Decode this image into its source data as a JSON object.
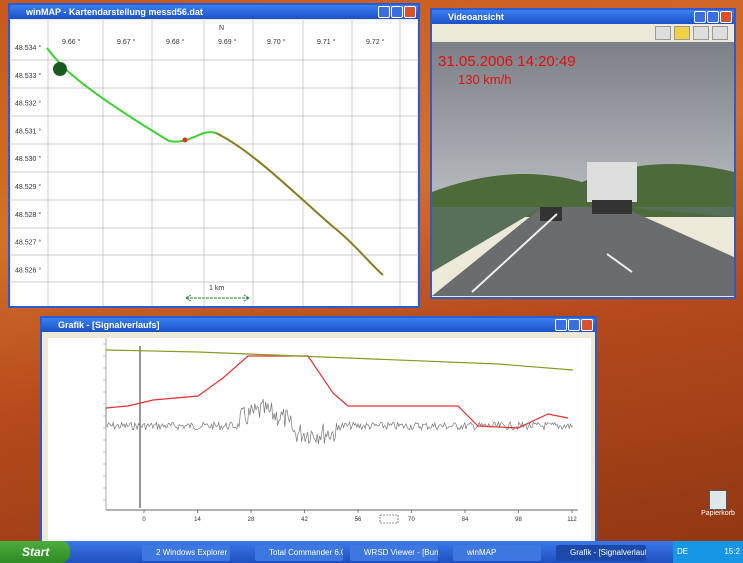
{
  "map_window": {
    "title": "winMAP - Kartendarstellung messd56.dat",
    "north": "N",
    "x_labels": [
      "9.66 °",
      "9.67 °",
      "9.68 °",
      "9.69 °",
      "9.70 °",
      "9.71 °",
      "9.72 °"
    ],
    "y_labels": [
      "48.534 °",
      "48.533 °",
      "48.532 °",
      "48.531 °",
      "48.530 °",
      "48.529 °",
      "48.528 °",
      "48.527 °",
      "48.526 °"
    ],
    "scale": "1 km"
  },
  "video_window": {
    "title": "Videoansicht",
    "timestamp": "31.05.2006 14:20:49",
    "speed": "130 km/h"
  },
  "graph_window": {
    "title": "Grafik - [Signalverlaufs]",
    "x_labels": [
      "0",
      "14",
      "28",
      "42",
      "56",
      "70",
      "84",
      "98",
      "112"
    ]
  },
  "desktop": {
    "recycle_bin": "Papierkorb"
  },
  "taskbar": {
    "start": "Start",
    "items": [
      "2 Windows Explorer",
      "Total Commander 6.0...",
      "WRSD Viewer - [Bund...",
      "winMAP",
      "Grafik - [Signalverlaufs]"
    ],
    "language": "DE",
    "clock": "15:2"
  }
}
